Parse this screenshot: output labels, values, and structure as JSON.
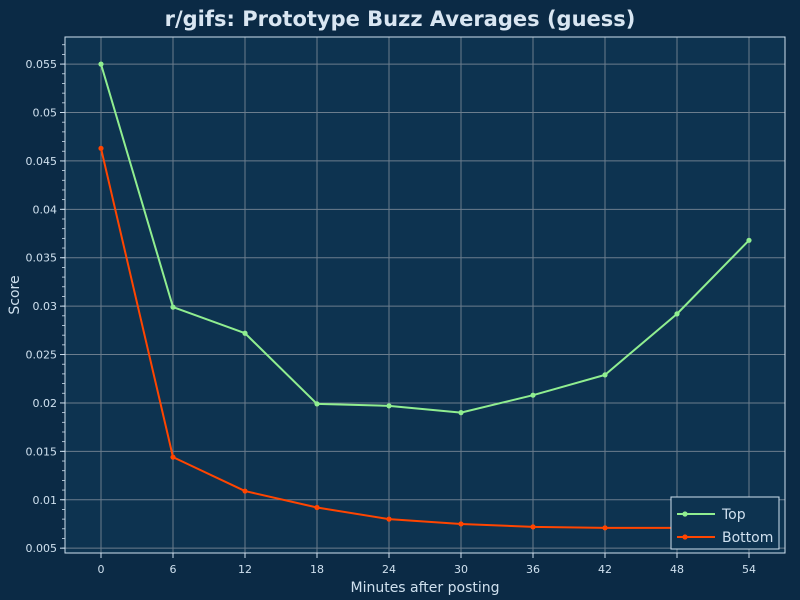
{
  "chart_data": {
    "type": "line",
    "title": "r/gifs: Prototype Buzz Averages (guess)",
    "xlabel": "Minutes after posting",
    "ylabel": "Score",
    "x": [
      0,
      6,
      12,
      18,
      24,
      30,
      36,
      42,
      48,
      54
    ],
    "x_ticks": [
      "0",
      "6",
      "12",
      "18",
      "24",
      "30",
      "36",
      "42",
      "48",
      "54"
    ],
    "y_ticks": [
      {
        "value": 0.005,
        "label": "0.005"
      },
      {
        "value": 0.01,
        "label": "0.01"
      },
      {
        "value": 0.015,
        "label": "0.015"
      },
      {
        "value": 0.02,
        "label": "0.02"
      },
      {
        "value": 0.025,
        "label": "0.025"
      },
      {
        "value": 0.03,
        "label": "0.03"
      },
      {
        "value": 0.035,
        "label": "0.035"
      },
      {
        "value": 0.04,
        "label": "0.04"
      },
      {
        "value": 0.045,
        "label": "0.045"
      },
      {
        "value": 0.05,
        "label": "0.05"
      },
      {
        "value": 0.055,
        "label": "0.055"
      }
    ],
    "xlim": [
      -3,
      57
    ],
    "ylim": [
      0.0045,
      0.0578
    ],
    "grid": true,
    "legend_position": "bottom-right",
    "series": [
      {
        "name": "Top",
        "color": "#90ee90",
        "values": [
          0.055,
          0.0299,
          0.0272,
          0.0199,
          0.0197,
          0.019,
          0.0208,
          0.0229,
          0.0292,
          0.0368
        ]
      },
      {
        "name": "Bottom",
        "color": "#ff4500",
        "values": [
          0.0463,
          0.0144,
          0.0109,
          0.0092,
          0.008,
          0.0075,
          0.0072,
          0.0071,
          0.0071,
          null
        ]
      }
    ]
  },
  "colors": {
    "background": "#0b2a45",
    "plot_background": "#0d3350",
    "grid": "#6b7d8d",
    "text": "#cfe0ee",
    "title": "#d9e6f2"
  }
}
